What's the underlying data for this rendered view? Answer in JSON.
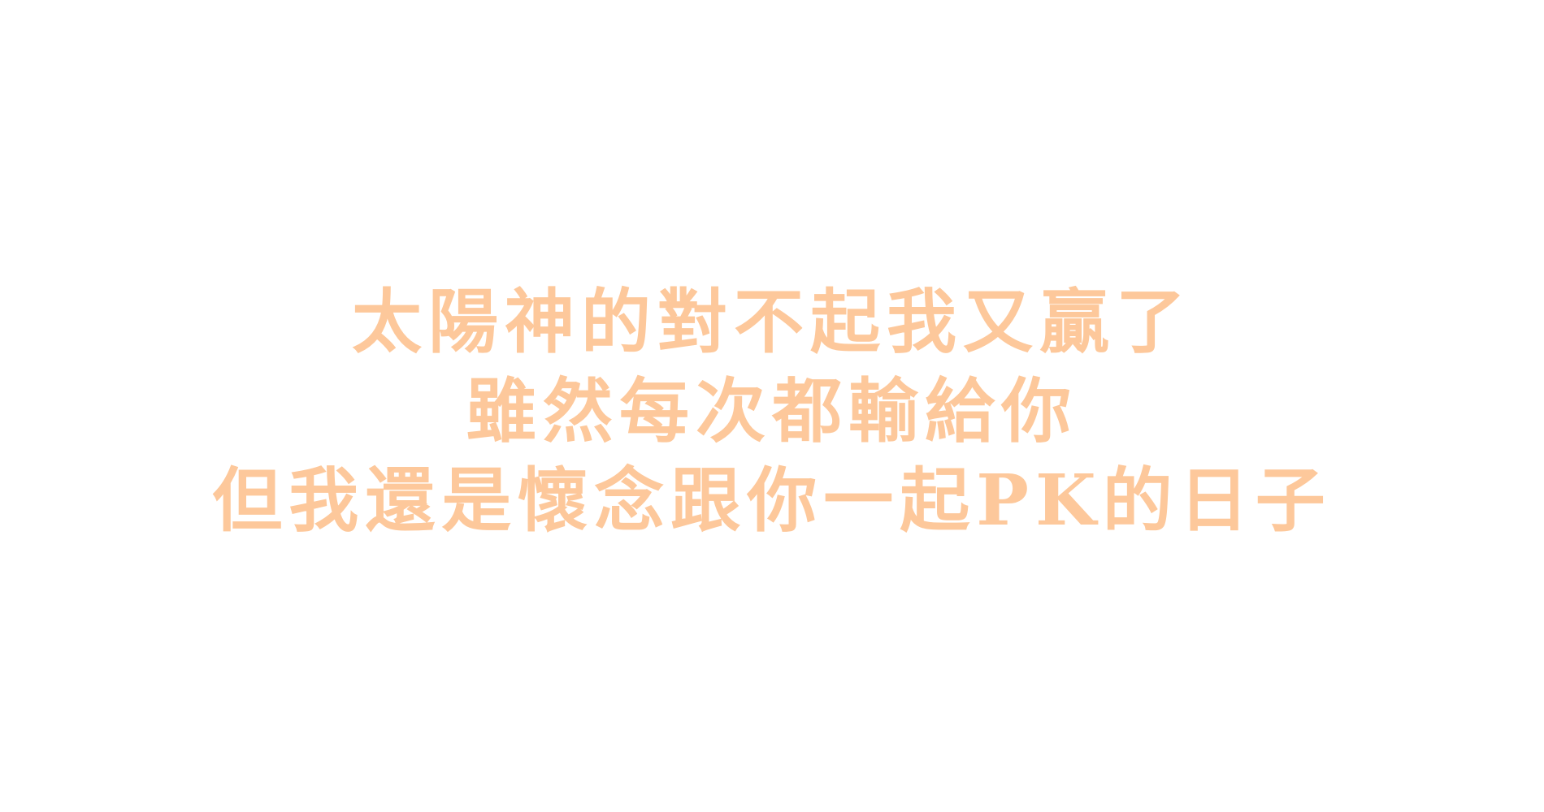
{
  "text_color": "#FDC89B",
  "lines": [
    "太陽神的對不起我又贏了",
    "雖然每次都輸給你",
    "但我還是懷念跟你一起PK的日子"
  ]
}
